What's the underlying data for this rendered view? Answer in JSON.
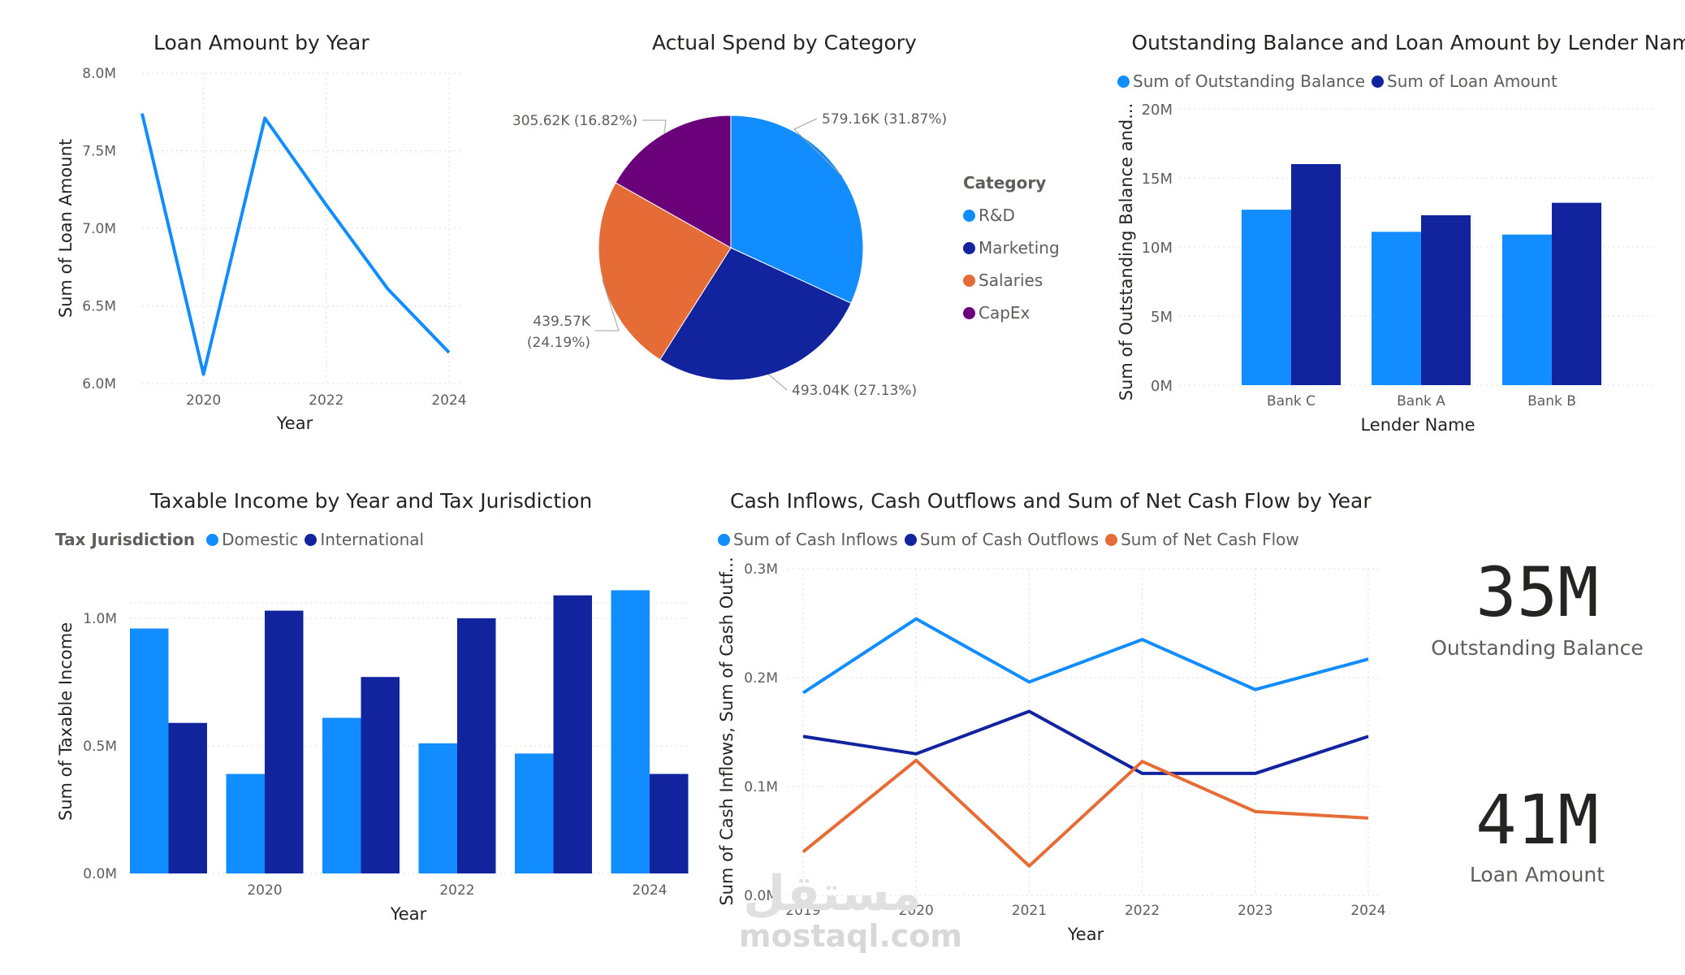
{
  "chart_data": [
    {
      "id": "loan",
      "type": "line",
      "title": "Loan Amount by Year",
      "xlabel": "Year",
      "ylabel": "Sum of Loan Amount",
      "x": [
        2019,
        2020,
        2021,
        2022,
        2023,
        2024
      ],
      "xticks": [
        "2020",
        "2022",
        "2024"
      ],
      "yticks": [
        "6.0M",
        "6.5M",
        "7.0M",
        "7.5M",
        "8.0M"
      ],
      "ylim": [
        6.0,
        8.0
      ],
      "series": [
        {
          "values": [
            7.74,
            6.06,
            7.71,
            7.15,
            6.61,
            6.2
          ],
          "color": "#118DFF"
        }
      ],
      "grid": true
    },
    {
      "id": "spend",
      "type": "pie",
      "title": "Actual Spend by Category",
      "legend_title": "Category",
      "slices": [
        {
          "name": "R&D",
          "value": 579.16,
          "label": "579.16K (31.87%)",
          "color": "#118DFF"
        },
        {
          "name": "Marketing",
          "value": 493.04,
          "label": "493.04K (27.13%)",
          "color": "#12239E"
        },
        {
          "name": "Salaries",
          "value": 439.57,
          "label": "439.57K",
          "label2": "(24.19%)",
          "color": "#E66C37"
        },
        {
          "name": "CapEx",
          "value": 305.62,
          "label": "305.62K (16.82%)",
          "color": "#6B007B"
        }
      ]
    },
    {
      "id": "lender",
      "type": "bar",
      "title": "Outstanding Balance and Loan Amount by Lender Name",
      "xlabel": "Lender Name",
      "ylabel": "Sum of Outstanding Balance and...",
      "categories": [
        "Bank C",
        "Bank A",
        "Bank B"
      ],
      "yticks": [
        "0M",
        "5M",
        "10M",
        "15M",
        "20M"
      ],
      "ylim": [
        0,
        20
      ],
      "series": [
        {
          "name": "Sum of Outstanding Balance",
          "values": [
            12.7,
            11.1,
            10.9
          ],
          "color": "#118DFF"
        },
        {
          "name": "Sum of Loan Amount",
          "values": [
            16.0,
            12.3,
            13.2
          ],
          "color": "#12239E"
        }
      ],
      "grid": true
    },
    {
      "id": "taxable",
      "type": "bar",
      "title": "Taxable Income by Year and Tax Jurisdiction",
      "legend_title": "Tax Jurisdiction",
      "xlabel": "Year",
      "ylabel": "Sum of Taxable Income",
      "categories": [
        "2019",
        "2020",
        "2021",
        "2022",
        "2023",
        "2024"
      ],
      "xticks": [
        "2020",
        "2022",
        "2024"
      ],
      "yticks": [
        "0.0M",
        "0.5M",
        "1.0M"
      ],
      "ylim": [
        0,
        1.1
      ],
      "series": [
        {
          "name": "Domestic",
          "values": [
            0.96,
            0.39,
            0.61,
            0.51,
            0.47,
            1.11
          ],
          "color": "#118DFF"
        },
        {
          "name": "International",
          "values": [
            0.59,
            1.03,
            0.77,
            1.0,
            1.09,
            0.39
          ],
          "color": "#12239E"
        }
      ],
      "grid": true
    },
    {
      "id": "cash",
      "type": "line",
      "title": "Cash Inflows, Cash Outflows and Sum of Net Cash Flow by Year",
      "xlabel": "Year",
      "ylabel": "Sum of Cash Inflows, Sum of Cash Outf...",
      "x": [
        2019,
        2020,
        2021,
        2022,
        2023,
        2024
      ],
      "xticks": [
        "2019",
        "2020",
        "2021",
        "2022",
        "2023",
        "2024"
      ],
      "yticks": [
        "0.0M",
        "0.1M",
        "0.2M",
        "0.3M"
      ],
      "ylim": [
        0,
        0.3
      ],
      "series": [
        {
          "name": "Sum of Cash Inflows",
          "values": [
            0.186,
            0.254,
            0.196,
            0.235,
            0.189,
            0.217
          ],
          "color": "#118DFF"
        },
        {
          "name": "Sum of Cash Outflows",
          "values": [
            0.146,
            0.13,
            0.169,
            0.112,
            0.112,
            0.146
          ],
          "color": "#12239E"
        },
        {
          "name": "Sum of Net Cash Flow",
          "values": [
            0.04,
            0.124,
            0.027,
            0.123,
            0.077,
            0.071
          ],
          "color": "#E66C37"
        }
      ],
      "grid": true
    }
  ],
  "kpis": [
    {
      "value": "35M",
      "label": "Outstanding Balance"
    },
    {
      "value": "41M",
      "label": "Loan Amount"
    }
  ],
  "watermark": {
    "arabic": "مستقل",
    "latin": "mostaql.com"
  }
}
